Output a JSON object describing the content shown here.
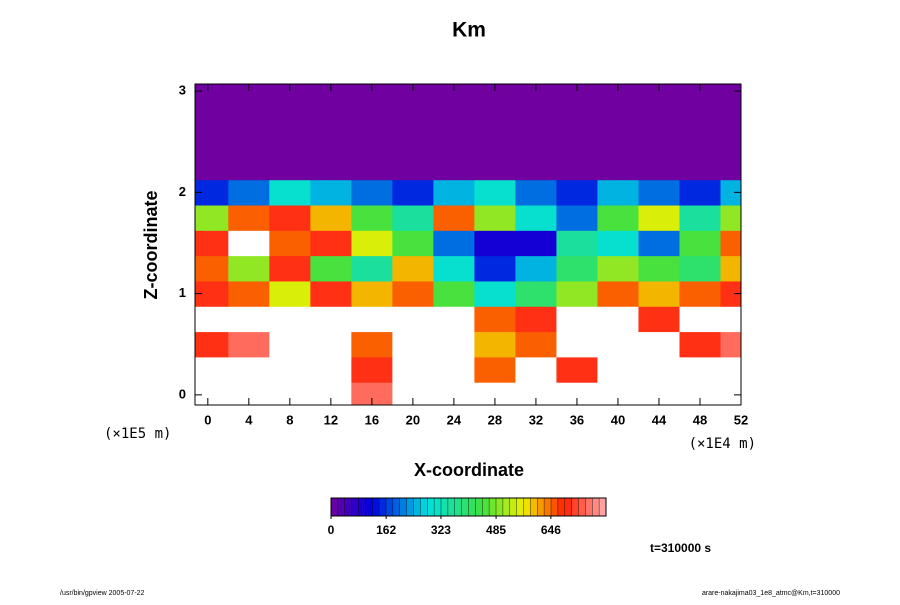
{
  "chart_data": {
    "type": "heatmap",
    "title": "Km",
    "x_label": "X-coordinate",
    "y_label": "Z-coordinate",
    "x_unit_label": "(×1E4 m)",
    "y_unit_label": "(×1E5 m)",
    "annotation": "t=310000 s",
    "footer_left": "/usr/bin/gpview 2005-07-22",
    "footer_right": "arare-nakajima03_1e8_atmc@Km,t=310000",
    "x": [
      0,
      4,
      8,
      12,
      16,
      20,
      24,
      28,
      32,
      36,
      40,
      44,
      48,
      52
    ],
    "y": [
      0,
      0.25,
      0.5,
      0.75,
      1,
      1.25,
      1.5,
      1.75,
      2,
      2.25,
      2.5,
      2.75,
      3
    ],
    "z": [
      [
        900,
        900,
        900,
        900,
        750,
        900,
        900,
        900,
        900,
        900,
        900,
        900,
        900,
        900
      ],
      [
        900,
        900,
        900,
        900,
        700,
        900,
        900,
        650,
        900,
        700,
        900,
        900,
        900,
        900
      ],
      [
        700,
        750,
        900,
        900,
        650,
        900,
        900,
        600,
        650,
        900,
        900,
        900,
        700,
        750
      ],
      [
        900,
        900,
        900,
        900,
        900,
        900,
        900,
        650,
        700,
        900,
        900,
        700,
        900,
        900
      ],
      [
        700,
        650,
        550,
        700,
        600,
        650,
        450,
        300,
        400,
        500,
        650,
        600,
        650,
        700
      ],
      [
        650,
        500,
        700,
        450,
        350,
        600,
        300,
        150,
        250,
        400,
        500,
        450,
        400,
        600
      ],
      [
        700,
        900,
        650,
        700,
        550,
        450,
        200,
        100,
        100,
        350,
        300,
        200,
        450,
        650
      ],
      [
        500,
        650,
        700,
        600,
        450,
        350,
        650,
        500,
        300,
        200,
        450,
        550,
        350,
        500
      ],
      [
        150,
        200,
        300,
        250,
        200,
        150,
        250,
        300,
        200,
        150,
        250,
        200,
        150,
        250
      ],
      [
        0,
        0,
        0,
        0,
        0,
        0,
        0,
        0,
        0,
        0,
        0,
        0,
        0,
        0
      ],
      [
        0,
        0,
        0,
        0,
        0,
        0,
        0,
        0,
        0,
        0,
        0,
        0,
        0,
        0
      ],
      [
        0,
        0,
        0,
        0,
        0,
        0,
        0,
        0,
        0,
        0,
        0,
        0,
        0,
        0
      ],
      [
        0,
        0,
        0,
        0,
        0,
        0,
        0,
        0,
        0,
        0,
        0,
        0,
        0,
        0
      ]
    ],
    "xlim": [
      -1.25,
      52
    ],
    "ylim": [
      -0.1,
      3.07
    ],
    "xticks": [
      0,
      4,
      8,
      12,
      16,
      20,
      24,
      28,
      32,
      36,
      40,
      44,
      48,
      52
    ],
    "yticks": [
      0,
      1,
      2,
      3
    ],
    "clim": [
      0,
      808
    ],
    "cticks": [
      0,
      162,
      323,
      485,
      646
    ]
  }
}
